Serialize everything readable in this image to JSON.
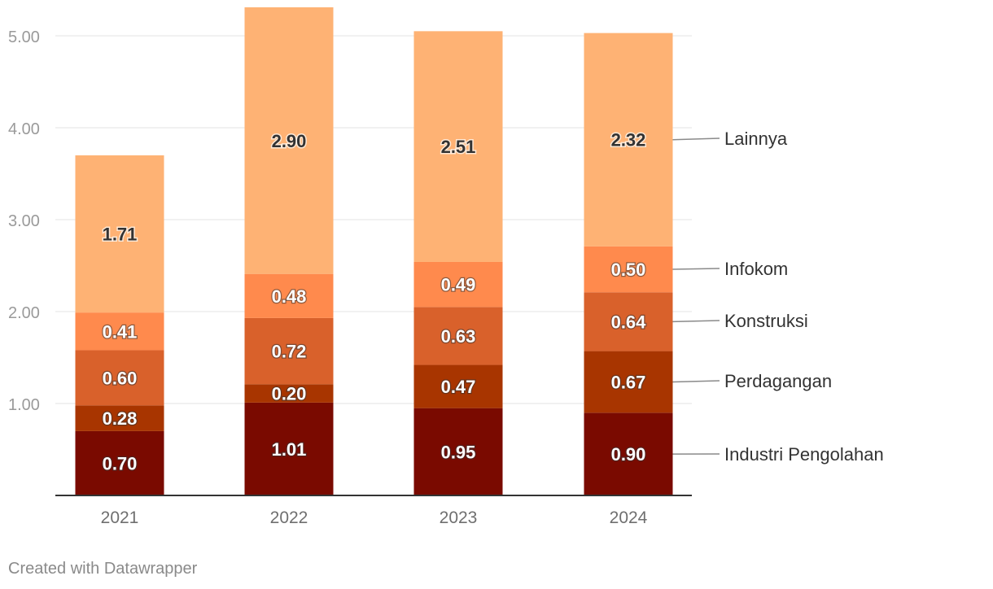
{
  "chart_data": {
    "type": "bar",
    "stacked": true,
    "categories": [
      "2021",
      "2022",
      "2023",
      "2024"
    ],
    "series": [
      {
        "name": "Industri Pengolahan",
        "values": [
          0.7,
          1.01,
          0.95,
          0.9
        ],
        "color": "#7a0a00",
        "labels": [
          "0.70",
          "1.01",
          "0.95",
          "0.90"
        ]
      },
      {
        "name": "Perdagangan",
        "values": [
          0.28,
          0.2,
          0.47,
          0.67
        ],
        "color": "#a83500",
        "labels": [
          "0.28",
          "0.20",
          "0.47",
          "0.67"
        ]
      },
      {
        "name": "Konstruksi",
        "values": [
          0.6,
          0.72,
          0.63,
          0.64
        ],
        "color": "#d9612b",
        "labels": [
          "0.60",
          "0.72",
          "0.63",
          "0.64"
        ]
      },
      {
        "name": "Infokom",
        "values": [
          0.41,
          0.48,
          0.49,
          0.5
        ],
        "color": "#ff8a4d",
        "labels": [
          "0.41",
          "0.48",
          "0.49",
          "0.50"
        ]
      },
      {
        "name": "Lainnya",
        "values": [
          1.71,
          2.9,
          2.51,
          2.32
        ],
        "color": "#feb274",
        "labels": [
          "1.71",
          "2.90",
          "2.51",
          "2.32"
        ]
      }
    ],
    "yticks": [
      1.0,
      2.0,
      3.0,
      4.0,
      5.0
    ],
    "ytick_labels": [
      "1.00",
      "2.00",
      "3.00",
      "4.00",
      "5.00"
    ],
    "ylim": [
      0,
      5.3
    ],
    "grid": true,
    "legend": "right, direct labels",
    "title": "",
    "xlabel": "",
    "ylabel": ""
  },
  "colors": {
    "grid": "#e3e3e3",
    "baseline": "#333333",
    "tick_text": "#9a9a9a",
    "axis_text": "#6f6f6f",
    "legend_text": "#333333",
    "leader_line": "#8a8a8a"
  },
  "footer": {
    "credit": "Created with Datawrapper"
  }
}
